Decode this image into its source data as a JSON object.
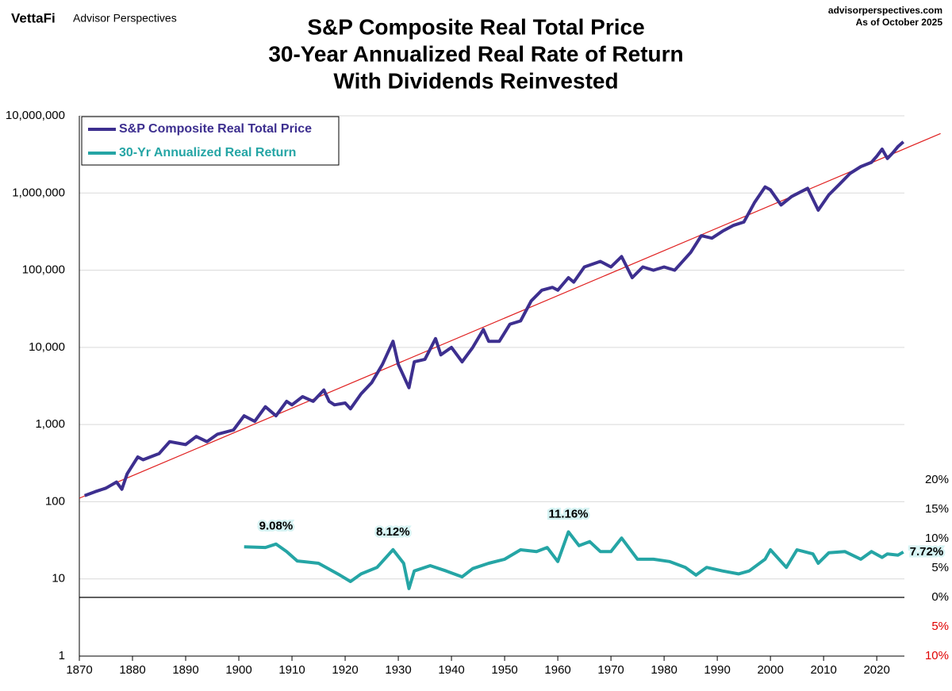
{
  "header": {
    "brand": "VettaFi",
    "site": "Advisor Perspectives",
    "url": "advisorperspectives.com",
    "date": "As of October 2025"
  },
  "chart_data": {
    "type": "line",
    "title": [
      "S&P Composite Real Total Price",
      "30-Year Annualized Real Rate of Return",
      "With Dividends Reinvested"
    ],
    "log_scale": true,
    "grid": true,
    "legend": "top-left",
    "zero_line": true,
    "negative_tick_color": "#e00000",
    "xlim": [
      1870,
      2025.2
    ],
    "xticks": [
      1870,
      1880,
      1890,
      1900,
      1910,
      1920,
      1930,
      1940,
      1950,
      1960,
      1970,
      1980,
      1990,
      2000,
      2010,
      2020
    ],
    "ylim": [
      1,
      10000000
    ],
    "yticks": [
      1,
      10,
      100,
      {
        "value": 1000,
        "label": "1,000"
      },
      {
        "value": 10000,
        "label": "10,000"
      },
      {
        "value": 100000,
        "label": "100,000"
      },
      {
        "value": 1000000,
        "label": "1,000,000"
      },
      {
        "value": 10000000,
        "label": "10,000,000"
      }
    ],
    "y2lim": [
      -10,
      82
    ],
    "y2ticks": [
      {
        "value": 20,
        "label": "20%"
      },
      {
        "value": 15,
        "label": "15%"
      },
      {
        "value": 10,
        "label": "10%"
      },
      {
        "value": 5,
        "label": "5%"
      },
      {
        "value": 0,
        "label": "0%"
      },
      {
        "value": -5,
        "label": "5%"
      },
      {
        "value": -10,
        "label": "10%"
      }
    ],
    "series": [
      {
        "name": "S&P Composite Real Total Price",
        "color": "#3d2f8f",
        "axis": "y",
        "x": [
          1871,
          1873,
          1875,
          1877,
          1878,
          1879,
          1881,
          1882,
          1885,
          1887,
          1890,
          1892,
          1894,
          1896,
          1899,
          1901,
          1903,
          1905,
          1907,
          1909,
          1910,
          1912,
          1914,
          1916,
          1917,
          1918,
          1920,
          1921,
          1923,
          1925,
          1927,
          1929,
          1930,
          1932,
          1933,
          1935,
          1937,
          1938,
          1940,
          1942,
          1944,
          1946,
          1947,
          1949,
          1951,
          1953,
          1955,
          1957,
          1959,
          1960,
          1962,
          1963,
          1965,
          1968,
          1970,
          1972,
          1974,
          1976,
          1978,
          1980,
          1982,
          1985,
          1987,
          1989,
          1991,
          1993,
          1995,
          1997,
          1999,
          2000,
          2002,
          2004,
          2007,
          2009,
          2011,
          2013,
          2015,
          2017,
          2019,
          2020,
          2021,
          2022,
          2023,
          2024,
          2025
        ],
        "values": [
          120,
          135,
          150,
          180,
          145,
          230,
          380,
          350,
          420,
          600,
          550,
          700,
          600,
          750,
          850,
          1300,
          1100,
          1700,
          1300,
          2000,
          1800,
          2300,
          2000,
          2800,
          2000,
          1800,
          1900,
          1600,
          2500,
          3500,
          6000,
          12000,
          6000,
          3000,
          6500,
          7000,
          13000,
          8000,
          10000,
          6500,
          10000,
          17000,
          12000,
          12000,
          20000,
          22000,
          40000,
          55000,
          60000,
          55000,
          80000,
          70000,
          110000,
          130000,
          110000,
          150000,
          80000,
          110000,
          100000,
          110000,
          100000,
          170000,
          280000,
          260000,
          320000,
          380000,
          420000,
          750000,
          1200000,
          1100000,
          700000,
          900000,
          1150000,
          600000,
          950000,
          1300000,
          1800000,
          2200000,
          2500000,
          3000000,
          3700000,
          2800000,
          3300000,
          4000000,
          4600000
        ]
      },
      {
        "name": "30-Yr Annualized Real Return",
        "color": "#25a5a5",
        "axis": "y2",
        "x": [
          1901,
          1905,
          1907,
          1909,
          1911,
          1915,
          1919,
          1921,
          1923,
          1926,
          1929,
          1931,
          1932,
          1933,
          1936,
          1939,
          1942,
          1944,
          1947,
          1950,
          1953,
          1956,
          1958,
          1960,
          1962,
          1964,
          1966,
          1968,
          1970,
          1972,
          1975,
          1978,
          1981,
          1984,
          1986,
          1988,
          1991,
          1994,
          1996,
          1999,
          2000,
          2003,
          2005,
          2008,
          2009,
          2011,
          2014,
          2017,
          2019,
          2021,
          2022,
          2024,
          2025
        ],
        "values": [
          8.6,
          8.5,
          9.08,
          7.8,
          6.2,
          5.8,
          3.8,
          2.7,
          4,
          5.1,
          8.12,
          5.8,
          1.5,
          4.5,
          5.4,
          4.5,
          3.5,
          4.9,
          5.8,
          6.5,
          8.1,
          7.8,
          8.5,
          6.1,
          11.16,
          8.8,
          9.5,
          7.8,
          7.8,
          10.1,
          6.5,
          6.5,
          6.1,
          5.1,
          3.8,
          5.1,
          4.5,
          4,
          4.5,
          6.5,
          8.1,
          5.1,
          8.1,
          7.4,
          5.8,
          7.6,
          7.8,
          6.5,
          7.8,
          6.8,
          7.4,
          7.2,
          7.72
        ]
      }
    ],
    "trend": {
      "color": "#e02020",
      "x": [
        1870,
        2032
      ],
      "values": [
        111,
        5900000
      ]
    },
    "annotations": [
      {
        "x": 1907,
        "value": 9.08,
        "label": "9.08%"
      },
      {
        "x": 1929,
        "value": 8.12,
        "label": "8.12%"
      },
      {
        "x": 1962,
        "value": 11.16,
        "label": "11.16%"
      },
      {
        "x": 2025,
        "value": 7.72,
        "label": "7.72%"
      }
    ]
  }
}
